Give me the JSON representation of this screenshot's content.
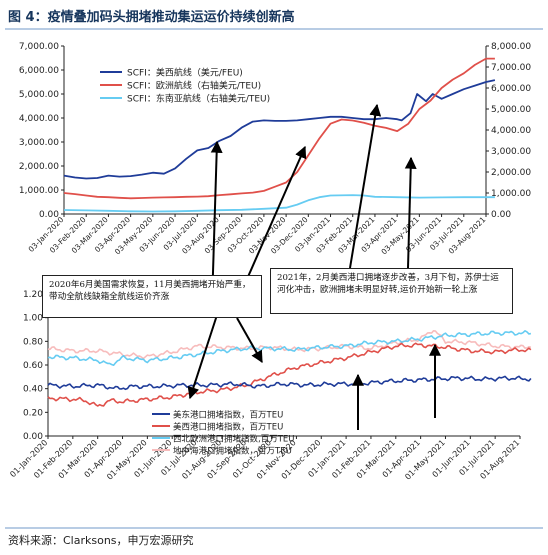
{
  "figure": {
    "title": "图 4：疫情叠加码头拥堵推动集运运价持续创新高",
    "source": "资料来源：Clarksons，申万宏源研究"
  },
  "annotations": [
    "2020年6月美国需求恢复，11月美西拥堵开始严重，带动全航线缺箱全航线运价齐涨",
    "2021年，2月美西港口拥堵逐步改善，3月下旬，苏伊士运河化冲击，欧洲拥堵未明显好转,运价开始新一轮上涨"
  ],
  "colors": {
    "navy": "#1f3c99",
    "red": "#e0504a",
    "cyan": "#66ccf2",
    "pink": "#f7bcbc",
    "title": "#17365d",
    "axis": "#222222"
  },
  "chart_data": [
    {
      "type": "line",
      "x_ticks": [
        "03-Jan-2020",
        "03-Feb-2020",
        "03-Mar-2020",
        "03-Apr-2020",
        "03-May-2020",
        "03-Jun-2020",
        "03-Jul-2020",
        "03-Aug-2020",
        "03-Sep-2020",
        "03-Oct-2020",
        "03-Nov-2020",
        "03-Dec-2020",
        "03-Jan-2021",
        "03-Feb-2021",
        "03-Mar-2021",
        "03-Apr-2021",
        "03-May-2021",
        "03-Jun-2021",
        "03-Jul-2021",
        "03-Aug-2021"
      ],
      "y_left": {
        "ylim": [
          0,
          7000
        ],
        "ticks": [
          "0.00",
          "1,000.00",
          "2,000.00",
          "3,000.00",
          "4,000.00",
          "5,000.00",
          "6,000.00",
          "7,000.00"
        ]
      },
      "y_right": {
        "ylim": [
          0,
          8000
        ],
        "ticks": [
          "0.00",
          "1,000.00",
          "2,000.00",
          "3,000.00",
          "4,000.00",
          "5,000.00",
          "6,000.00",
          "7,000.00",
          "8,000.00"
        ]
      },
      "legend_position": "top-left",
      "series": [
        {
          "name": "SCFI：美西航线（美元/FEU)",
          "axis": "left",
          "color": "#1f3c99",
          "points": [
            [
              0,
              1600
            ],
            [
              0.5,
              1520
            ],
            [
              1,
              1480
            ],
            [
              1.5,
              1500
            ],
            [
              2,
              1600
            ],
            [
              2.5,
              1560
            ],
            [
              3,
              1580
            ],
            [
              3.5,
              1640
            ],
            [
              4,
              1720
            ],
            [
              4.5,
              1680
            ],
            [
              5,
              1900
            ],
            [
              5.5,
              2300
            ],
            [
              6,
              2650
            ],
            [
              6.5,
              2750
            ],
            [
              7,
              3050
            ],
            [
              7.5,
              3250
            ],
            [
              8,
              3600
            ],
            [
              8.5,
              3850
            ],
            [
              9,
              3900
            ],
            [
              9.5,
              3880
            ],
            [
              10,
              3880
            ],
            [
              10.5,
              3900
            ],
            [
              11,
              3950
            ],
            [
              11.5,
              4000
            ],
            [
              12,
              4050
            ],
            [
              12.5,
              4050
            ],
            [
              13,
              4000
            ],
            [
              13.5,
              3950
            ],
            [
              14,
              3950
            ],
            [
              14.5,
              4000
            ],
            [
              15,
              3950
            ],
            [
              15.2,
              3900
            ],
            [
              15.6,
              4200
            ],
            [
              15.9,
              5000
            ],
            [
              16.3,
              4700
            ],
            [
              16.6,
              5000
            ],
            [
              17,
              4800
            ],
            [
              17.5,
              5000
            ],
            [
              18,
              5200
            ],
            [
              18.5,
              5350
            ],
            [
              19,
              5500
            ],
            [
              19.4,
              5580
            ]
          ]
        },
        {
          "name": "SCFI：欧洲航线（右轴美元/TEU)",
          "axis": "right",
          "color": "#e0504a",
          "points": [
            [
              0,
              1000
            ],
            [
              0.5,
              950
            ],
            [
              1,
              880
            ],
            [
              1.5,
              820
            ],
            [
              2,
              800
            ],
            [
              2.5,
              770
            ],
            [
              3,
              750
            ],
            [
              3.5,
              760
            ],
            [
              4,
              780
            ],
            [
              4.5,
              790
            ],
            [
              5,
              800
            ],
            [
              5.5,
              820
            ],
            [
              6,
              830
            ],
            [
              6.5,
              850
            ],
            [
              7,
              900
            ],
            [
              7.5,
              940
            ],
            [
              8,
              980
            ],
            [
              8.5,
              1020
            ],
            [
              9,
              1100
            ],
            [
              9.5,
              1300
            ],
            [
              10,
              1500
            ],
            [
              10.5,
              2000
            ],
            [
              11,
              2800
            ],
            [
              11.5,
              3600
            ],
            [
              12,
              4300
            ],
            [
              12.5,
              4500
            ],
            [
              13,
              4450
            ],
            [
              13.5,
              4350
            ],
            [
              14,
              4200
            ],
            [
              14.5,
              4100
            ],
            [
              15,
              3950
            ],
            [
              15.5,
              4300
            ],
            [
              16,
              5000
            ],
            [
              16.5,
              5400
            ],
            [
              17,
              6000
            ],
            [
              17.5,
              6400
            ],
            [
              18,
              6700
            ],
            [
              18.5,
              7100
            ],
            [
              19,
              7400
            ],
            [
              19.4,
              7400
            ]
          ]
        },
        {
          "name": "SCFI：东南亚航线（右轴美元/TEU)",
          "axis": "right",
          "color": "#66ccf2",
          "points": [
            [
              0,
              190
            ],
            [
              1,
              170
            ],
            [
              2,
              150
            ],
            [
              3,
              130
            ],
            [
              4,
              120
            ],
            [
              5,
              130
            ],
            [
              6,
              150
            ],
            [
              7,
              180
            ],
            [
              8,
              200
            ],
            [
              9,
              250
            ],
            [
              10,
              300
            ],
            [
              10.5,
              450
            ],
            [
              11,
              650
            ],
            [
              11.5,
              800
            ],
            [
              12,
              880
            ],
            [
              13,
              900
            ],
            [
              13.5,
              880
            ],
            [
              14,
              820
            ],
            [
              15,
              800
            ],
            [
              16,
              780
            ],
            [
              17,
              790
            ],
            [
              18,
              800
            ],
            [
              19,
              800
            ],
            [
              19.4,
              800
            ]
          ]
        }
      ]
    },
    {
      "type": "line",
      "x_ticks": [
        "01-Jan-2020",
        "01-Feb-2020",
        "01-Mar-2020",
        "01-Apr-2020",
        "01-May-2020",
        "01-Jun-2020",
        "01-Jul-2020",
        "01-Aug-2020",
        "01-Sep-2020",
        "01-Oct-2020",
        "01-Nov-2020",
        "01-Dec-2020",
        "01-Jan-2021",
        "01-Feb-2021",
        "01-Mar-2021",
        "01-Apr-2021",
        "01-May-2021",
        "01-Jun-2021",
        "01-Jul-2021",
        "01-Aug-2021"
      ],
      "y_axis": {
        "ylim": [
          0,
          1.2
        ],
        "ticks": [
          "0.00",
          "0.20",
          "0.40",
          "0.60",
          "0.80",
          "1.00",
          "1.20"
        ]
      },
      "legend_position": "bottom-center",
      "series": [
        {
          "name": "美东港口拥堵指数，百万TEU",
          "color": "#1f3c99",
          "points": [
            [
              0,
              0.43
            ],
            [
              1,
              0.42
            ],
            [
              2,
              0.43
            ],
            [
              2.8,
              0.4
            ],
            [
              3.5,
              0.42
            ],
            [
              4.5,
              0.42
            ],
            [
              5.5,
              0.43
            ],
            [
              6.5,
              0.43
            ],
            [
              7.5,
              0.44
            ],
            [
              8.5,
              0.42
            ],
            [
              9.5,
              0.44
            ],
            [
              10.5,
              0.43
            ],
            [
              11.5,
              0.44
            ],
            [
              12.5,
              0.44
            ],
            [
              13.5,
              0.46
            ],
            [
              14.5,
              0.47
            ],
            [
              15.5,
              0.48
            ],
            [
              16.5,
              0.49
            ],
            [
              17.5,
              0.48
            ],
            [
              18.5,
              0.49
            ],
            [
              19.5,
              0.48
            ]
          ]
        },
        {
          "name": "美西港口拥堵指数，百万TEU",
          "color": "#e0504a",
          "points": [
            [
              0,
              0.32
            ],
            [
              1,
              0.31
            ],
            [
              1.5,
              0.3
            ],
            [
              2,
              0.25
            ],
            [
              2.5,
              0.3
            ],
            [
              3,
              0.29
            ],
            [
              4,
              0.31
            ],
            [
              5,
              0.33
            ],
            [
              6,
              0.37
            ],
            [
              7,
              0.39
            ],
            [
              8,
              0.43
            ],
            [
              9,
              0.51
            ],
            [
              10,
              0.58
            ],
            [
              11,
              0.62
            ],
            [
              12,
              0.66
            ],
            [
              13,
              0.71
            ],
            [
              14,
              0.76
            ],
            [
              15,
              0.77
            ],
            [
              16,
              0.75
            ],
            [
              17,
              0.72
            ],
            [
              18,
              0.71
            ],
            [
              19,
              0.73
            ],
            [
              19.5,
              0.72
            ]
          ]
        },
        {
          "name": "西北欧洲港口拥堵指数,百万TEU",
          "color": "#66ccf2",
          "points": [
            [
              0,
              0.67
            ],
            [
              1,
              0.66
            ],
            [
              2,
              0.64
            ],
            [
              2.5,
              0.6
            ],
            [
              3,
              0.66
            ],
            [
              4,
              0.64
            ],
            [
              5,
              0.66
            ],
            [
              6,
              0.69
            ],
            [
              7,
              0.72
            ],
            [
              8,
              0.74
            ],
            [
              9,
              0.74
            ],
            [
              10,
              0.73
            ],
            [
              11,
              0.75
            ],
            [
              12,
              0.76
            ],
            [
              13,
              0.79
            ],
            [
              14,
              0.8
            ],
            [
              15,
              0.82
            ],
            [
              16,
              0.85
            ],
            [
              17,
              0.86
            ],
            [
              18,
              0.87
            ],
            [
              19,
              0.87
            ],
            [
              19.5,
              0.87
            ]
          ]
        },
        {
          "name": "地中海港口拥堵指数，百万TEU",
          "color": "#f7bcbc",
          "points": [
            [
              0,
              0.74
            ],
            [
              1,
              0.72
            ],
            [
              2,
              0.72
            ],
            [
              3,
              0.69
            ],
            [
              4,
              0.67
            ],
            [
              5,
              0.71
            ],
            [
              6,
              0.76
            ],
            [
              7,
              0.75
            ],
            [
              8,
              0.74
            ],
            [
              9,
              0.75
            ],
            [
              10,
              0.73
            ],
            [
              11,
              0.74
            ],
            [
              12,
              0.76
            ],
            [
              13,
              0.74
            ],
            [
              14,
              0.79
            ],
            [
              15,
              0.82
            ],
            [
              15.5,
              0.9
            ],
            [
              16,
              0.8
            ],
            [
              17,
              0.79
            ],
            [
              18,
              0.76
            ],
            [
              19,
              0.75
            ],
            [
              19.5,
              0.76
            ]
          ]
        }
      ]
    }
  ]
}
